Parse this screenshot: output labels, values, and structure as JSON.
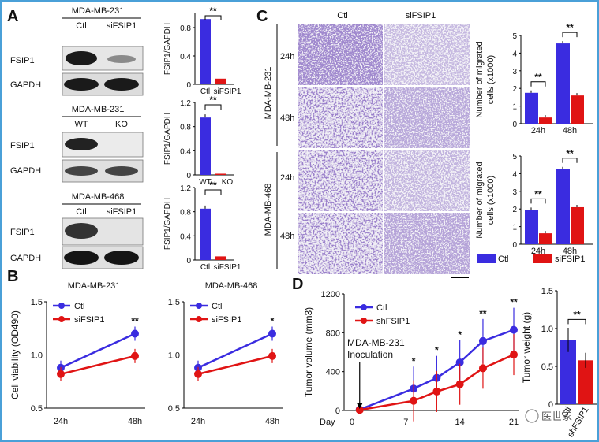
{
  "panel_labels": {
    "a": "A",
    "b": "B",
    "c": "C",
    "d": "D"
  },
  "colors": {
    "ctl": "#3a2ce0",
    "si": "#e01414",
    "band": "#1a1a1a",
    "stain": "#5a3aa0"
  },
  "western": {
    "blocks": [
      {
        "cell_line": "MDA-MB-231",
        "lane1": "Ctl",
        "lane2": "siFSIP1",
        "row1": "FSIP1",
        "row2": "GAPDH"
      },
      {
        "cell_line": "MDA-MB-231",
        "lane1": "WT",
        "lane2": "KO",
        "row1": "FSIP1",
        "row2": "GAPDH"
      },
      {
        "cell_line": "MDA-MB-468",
        "lane1": "Ctl",
        "lane2": "siFSIP1",
        "row1": "FSIP1",
        "row2": "GAPDH"
      }
    ]
  },
  "transwell": {
    "col1": "Ctl",
    "col2": "siFSIP1",
    "group1": "MDA-MB-231",
    "group2": "MDA-MB-468",
    "row_a": "24h",
    "row_b": "48h"
  },
  "chart_data": [
    {
      "type": "bar",
      "title": "",
      "ylabel": "FSIP1/GAPDH",
      "categories": [
        "Ctl",
        "siFSIP1"
      ],
      "values": [
        0.92,
        0.08
      ],
      "ylim": [
        0,
        1.0
      ],
      "yticks": [
        "0",
        "0.4",
        "0.8"
      ],
      "sig": "**"
    },
    {
      "type": "bar",
      "title": "",
      "ylabel": "FSIP1/GAPDH",
      "categories": [
        "WT",
        "KO"
      ],
      "values": [
        0.95,
        0.02
      ],
      "ylim": [
        0,
        1.2
      ],
      "yticks": [
        "0",
        "0.4",
        "0.8",
        "1.2"
      ],
      "sig": "**"
    },
    {
      "type": "bar",
      "title": "",
      "ylabel": "FSIP1/GAPDH",
      "categories": [
        "Ctl",
        "siFSIP1"
      ],
      "values": [
        0.85,
        0.06
      ],
      "ylim": [
        0,
        1.2
      ],
      "yticks": [
        "0",
        "0.4",
        "0.8",
        "1.2"
      ],
      "sig": "**"
    },
    {
      "type": "bar",
      "ylabel": "Number of migrated cells (x1000)",
      "ylabel1": "Number of migrated",
      "ylabel2": "cells (x1000)",
      "categories": [
        "24h",
        "48h"
      ],
      "series": [
        {
          "name": "Ctl",
          "values": [
            1.75,
            4.55
          ]
        },
        {
          "name": "siFSIP1",
          "values": [
            0.35,
            1.6
          ]
        }
      ],
      "ylim": [
        0,
        5
      ],
      "yticks": [
        "0",
        "1",
        "2",
        "3",
        "4",
        "5"
      ],
      "sig": [
        "**",
        "**"
      ]
    },
    {
      "type": "bar",
      "ylabel": "Number of migrated cells (x1000)",
      "ylabel1": "Number of migrated",
      "ylabel2": "cells (x1000)",
      "categories": [
        "24h",
        "48h"
      ],
      "series": [
        {
          "name": "Ctl",
          "values": [
            1.95,
            4.25
          ]
        },
        {
          "name": "siFSIP1",
          "values": [
            0.62,
            2.1
          ]
        }
      ],
      "ylim": [
        0,
        5
      ],
      "yticks": [
        "0",
        "1",
        "2",
        "3",
        "4",
        "5"
      ],
      "sig": [
        "**",
        "**"
      ],
      "legend": [
        "Ctl",
        "siFSIP1"
      ]
    },
    {
      "type": "line",
      "title": "MDA-MB-231",
      "ylabel": "Cell viability (OD490)",
      "x": [
        "24h",
        "48h"
      ],
      "series": [
        {
          "name": "Ctl",
          "values": [
            0.88,
            1.2
          ]
        },
        {
          "name": "siFSIP1",
          "values": [
            0.82,
            0.99
          ]
        }
      ],
      "ylim": [
        0.5,
        1.5
      ],
      "yticks": [
        "0.5",
        "1.0",
        "1.5"
      ],
      "sig": "**"
    },
    {
      "type": "line",
      "title": "MDA-MB-468",
      "ylabel": "",
      "x": [
        "24h",
        "48h"
      ],
      "series": [
        {
          "name": "Ctl",
          "values": [
            0.88,
            1.2
          ]
        },
        {
          "name": "siFSIP1",
          "values": [
            0.82,
            0.99
          ]
        }
      ],
      "ylim": [
        0.5,
        1.5
      ],
      "yticks": [
        "0.5",
        "1.0",
        "1.5"
      ],
      "sig": "*"
    },
    {
      "type": "line",
      "title": "",
      "ylabel": "Tumor volume (mm3)",
      "xlabel": "Day",
      "x": [
        1,
        8,
        11,
        14,
        17,
        21
      ],
      "xticks": [
        "0",
        "7",
        "14",
        "21"
      ],
      "series": [
        {
          "name": "Ctl",
          "values": [
            10,
            225,
            335,
            495,
            715,
            830
          ]
        },
        {
          "name": "shFSIP1",
          "values": [
            5,
            100,
            195,
            270,
            435,
            575
          ]
        }
      ],
      "ylim": [
        0,
        1200
      ],
      "yticks": [
        "0",
        "400",
        "800",
        "1200"
      ],
      "sig": [
        "*",
        "*",
        "*",
        "**",
        "**"
      ],
      "annotation1": "MDA-MB-231",
      "annotation2": "Inoculation"
    },
    {
      "type": "bar",
      "ylabel": "Tumor weight (g)",
      "categories": [
        "Ctl",
        "shFSIP1"
      ],
      "values": [
        0.85,
        0.58
      ],
      "ylim": [
        0,
        1.5
      ],
      "yticks": [
        "0",
        "0.5",
        "1.0",
        "1.5"
      ],
      "sig": "**"
    }
  ],
  "watermark": "医世家"
}
